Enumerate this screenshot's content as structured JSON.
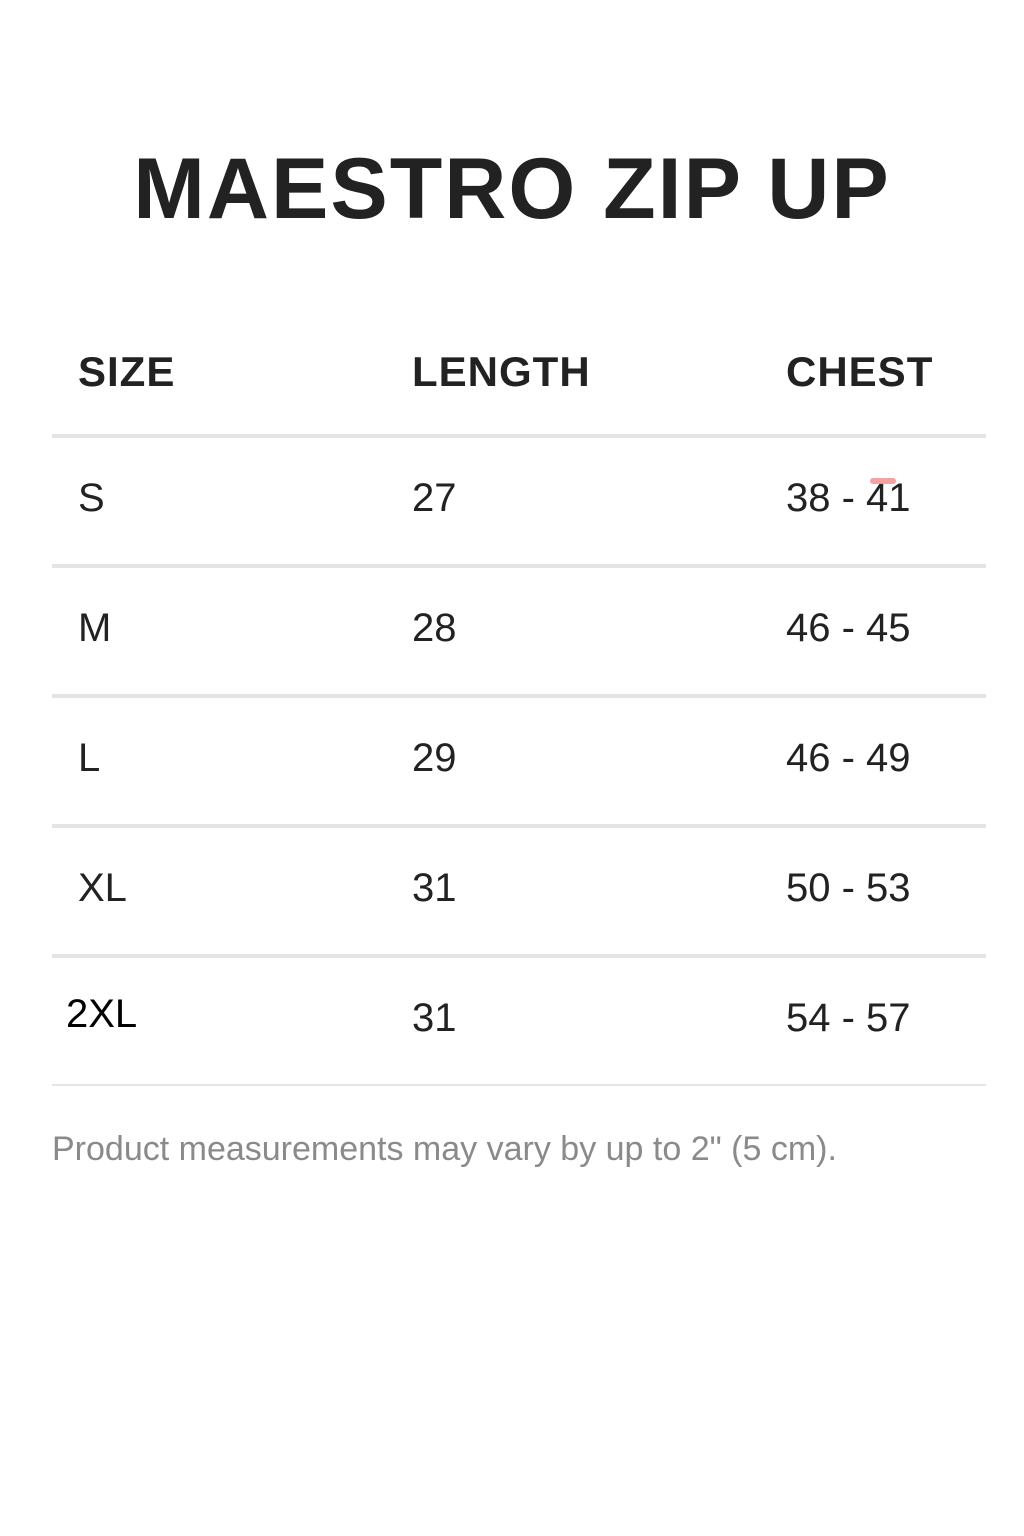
{
  "title": "MAESTRO ZIP UP",
  "table": {
    "headers": [
      "SIZE",
      "LENGTH",
      "CHEST"
    ],
    "rows": [
      {
        "size": "S",
        "length": "27",
        "chest": "38 - 41"
      },
      {
        "size": "M",
        "length": "28",
        "chest": "46 - 45"
      },
      {
        "size": "L",
        "length": "29",
        "chest": "46 - 49"
      },
      {
        "size": "XL",
        "length": "31",
        "chest": "50 - 53"
      },
      {
        "size": "2XL",
        "length": "31",
        "chest": "54 - 57"
      }
    ]
  },
  "note": "Product measurements may vary by up to 2\" (5 cm)."
}
